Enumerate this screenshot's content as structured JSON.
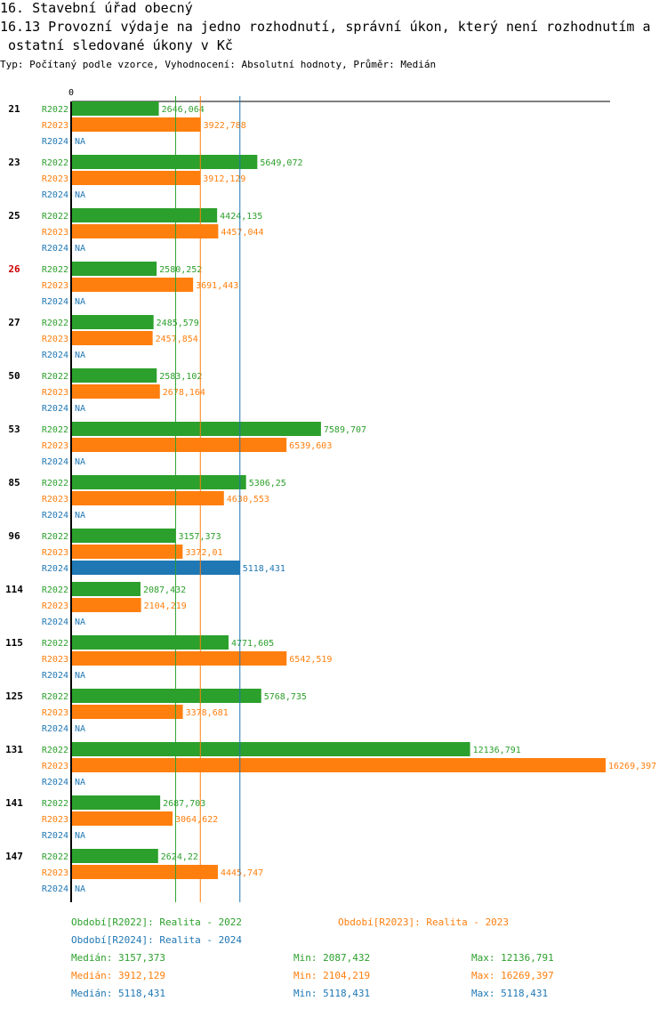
{
  "header": {
    "title_line1": "16. Stavební úřad obecný",
    "title_line2": "16.13 Provozní výdaje na jedno rozhodnutí, správní úkon, který není rozhodnutím a",
    "title_line3": " ostatní sledované úkony v Kč",
    "subtitle": "Typ: Počítaný podle vzorce, Vyhodnocení: Absolutní hodnoty, Průměr: Medián"
  },
  "colors": {
    "R2022": "#2ca02c",
    "R2023": "#ff7f0e",
    "R2024": "#1f77b4",
    "highlight": "#cc0000",
    "text": "#000000"
  },
  "chart_data": {
    "type": "bar",
    "orientation": "horizontal",
    "axis_zero_label": "0",
    "xlim": [
      0,
      16269.397
    ],
    "highlight_category": "26",
    "categories": [
      "21",
      "23",
      "25",
      "26",
      "27",
      "50",
      "53",
      "85",
      "96",
      "114",
      "115",
      "125",
      "131",
      "141",
      "147"
    ],
    "series": [
      {
        "name": "R2022",
        "values": [
          2646.064,
          5649.072,
          4424.135,
          2580.252,
          2485.579,
          2583.102,
          7589.707,
          5306.25,
          3157.373,
          2087.432,
          4771.605,
          5768.735,
          12136.791,
          2687.703,
          2624.22
        ],
        "labels": [
          "2646,064",
          "5649,072",
          "4424,135",
          "2580,252",
          "2485,579",
          "2583,102",
          "7589,707",
          "5306,25",
          "3157,373",
          "2087,432",
          "4771,605",
          "5768,735",
          "12136,791",
          "2687,703",
          "2624,22"
        ]
      },
      {
        "name": "R2023",
        "values": [
          3922.788,
          3912.129,
          4457.044,
          3691.443,
          2457.854,
          2678.164,
          6539.603,
          4630.553,
          3372.01,
          2104.219,
          6542.519,
          3378.681,
          16269.397,
          3064.622,
          4445.747
        ],
        "labels": [
          "3922,788",
          "3912,129",
          "4457,044",
          "3691,443",
          "2457,854",
          "2678,164",
          "6539,603",
          "4630,553",
          "3372,01",
          "2104,219",
          "6542,519",
          "3378,681",
          "16269,397",
          "3064,622",
          "4445,747"
        ]
      },
      {
        "name": "R2024",
        "values": [
          null,
          null,
          null,
          null,
          null,
          null,
          null,
          null,
          5118.431,
          null,
          null,
          null,
          null,
          null,
          null
        ],
        "labels": [
          "NA",
          "NA",
          "NA",
          "NA",
          "NA",
          "NA",
          "NA",
          "NA",
          "5118,431",
          "NA",
          "NA",
          "NA",
          "NA",
          "NA",
          "NA"
        ]
      }
    ],
    "median_lines": {
      "R2022": 3157.373,
      "R2023": 3912.129,
      "R2024": 5118.431
    }
  },
  "legend": {
    "periods": [
      {
        "key": "R2022",
        "text": "Období[R2022]: Realita - 2022"
      },
      {
        "key": "R2023",
        "text": "Období[R2023]: Realita - 2023"
      },
      {
        "key": "R2024",
        "text": "Období[R2024]: Realita - 2024"
      }
    ],
    "stats": [
      {
        "key": "R2022",
        "median": "Medián: 3157,373",
        "min": "Min: 2087,432",
        "max": "Max: 12136,791"
      },
      {
        "key": "R2023",
        "median": "Medián: 3912,129",
        "min": "Min: 2104,219",
        "max": "Max: 16269,397"
      },
      {
        "key": "R2024",
        "median": "Medián: 5118,431",
        "min": "Min: 5118,431",
        "max": "Max: 5118,431"
      }
    ]
  }
}
